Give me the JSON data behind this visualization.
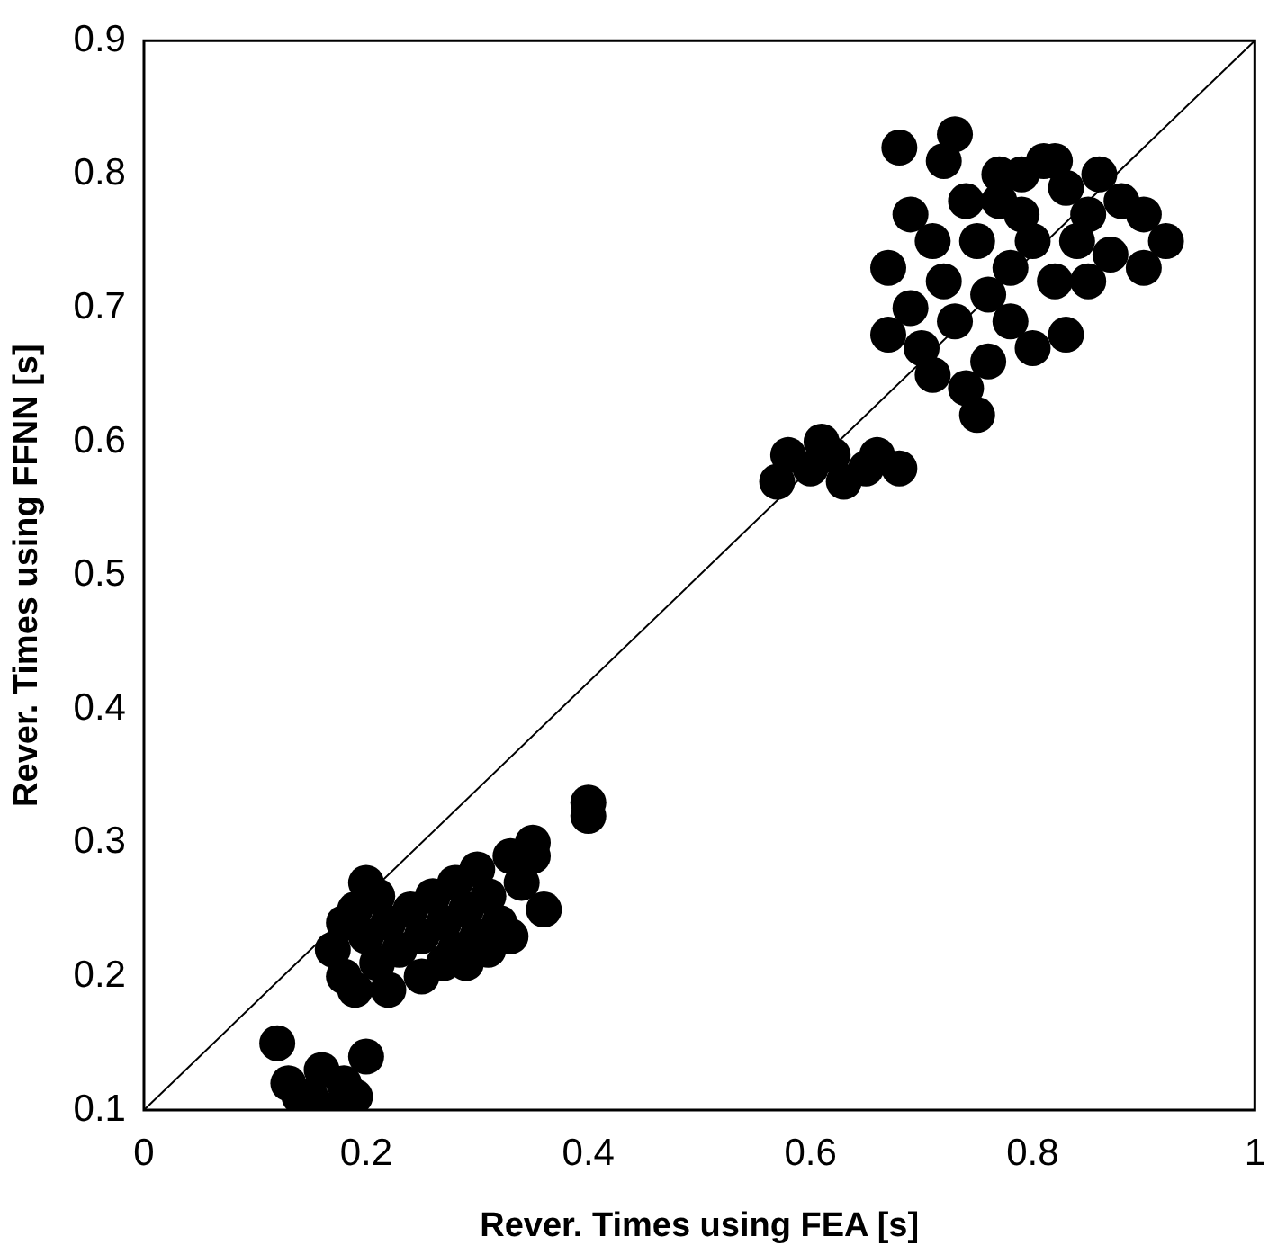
{
  "chart_data": {
    "type": "scatter",
    "xlabel": "Rever. Times using FEA [s]",
    "ylabel": "Rever. Times using FFNN [s]",
    "xlim": [
      0,
      1
    ],
    "ylim": [
      0.1,
      0.9
    ],
    "xticks": [
      0,
      0.2,
      0.4,
      0.6,
      0.8,
      1
    ],
    "yticks": [
      0.1,
      0.2,
      0.3,
      0.4,
      0.5,
      0.6,
      0.7,
      0.8,
      0.9
    ],
    "grid": false,
    "legend": false,
    "marker": "circle",
    "series": [
      {
        "type": "scatter",
        "color": "#000000",
        "x": [
          0.12,
          0.13,
          0.15,
          0.17,
          0.18,
          0.2,
          0.16,
          0.14,
          0.19,
          0.17,
          0.18,
          0.19,
          0.2,
          0.2,
          0.21,
          0.22,
          0.22,
          0.23,
          0.24,
          0.25,
          0.26,
          0.27,
          0.28,
          0.28,
          0.29,
          0.3,
          0.3,
          0.31,
          0.32,
          0.33,
          0.34,
          0.35,
          0.36,
          0.35,
          0.18,
          0.19,
          0.21,
          0.25,
          0.27,
          0.29,
          0.31,
          0.33,
          0.4,
          0.4,
          0.57,
          0.58,
          0.6,
          0.62,
          0.63,
          0.65,
          0.66,
          0.68,
          0.61,
          0.67,
          0.67,
          0.68,
          0.69,
          0.69,
          0.7,
          0.71,
          0.72,
          0.72,
          0.73,
          0.73,
          0.74,
          0.74,
          0.75,
          0.76,
          0.76,
          0.77,
          0.78,
          0.78,
          0.79,
          0.8,
          0.8,
          0.81,
          0.82,
          0.83,
          0.83,
          0.84,
          0.85,
          0.85,
          0.86,
          0.87,
          0.88,
          0.9,
          0.9,
          0.92,
          0.77,
          0.75,
          0.71,
          0.79,
          0.82
        ],
        "values": [
          0.15,
          0.12,
          0.11,
          0.1,
          0.12,
          0.14,
          0.13,
          0.11,
          0.11,
          0.22,
          0.2,
          0.25,
          0.27,
          0.23,
          0.21,
          0.19,
          0.24,
          0.22,
          0.25,
          0.23,
          0.26,
          0.24,
          0.22,
          0.27,
          0.25,
          0.23,
          0.28,
          0.26,
          0.24,
          0.29,
          0.27,
          0.29,
          0.25,
          0.3,
          0.24,
          0.19,
          0.26,
          0.2,
          0.21,
          0.21,
          0.22,
          0.23,
          0.32,
          0.33,
          0.57,
          0.59,
          0.58,
          0.59,
          0.57,
          0.58,
          0.59,
          0.58,
          0.6,
          0.68,
          0.73,
          0.82,
          0.77,
          0.7,
          0.67,
          0.75,
          0.81,
          0.72,
          0.83,
          0.69,
          0.64,
          0.78,
          0.75,
          0.71,
          0.66,
          0.8,
          0.73,
          0.69,
          0.77,
          0.75,
          0.67,
          0.81,
          0.72,
          0.79,
          0.68,
          0.75,
          0.77,
          0.72,
          0.8,
          0.74,
          0.78,
          0.77,
          0.73,
          0.75,
          0.78,
          0.62,
          0.65,
          0.8,
          0.81
        ]
      },
      {
        "type": "line",
        "color": "#000000",
        "x": [
          0,
          1
        ],
        "values": [
          0.1,
          0.9
        ],
        "marker": "none"
      }
    ]
  }
}
